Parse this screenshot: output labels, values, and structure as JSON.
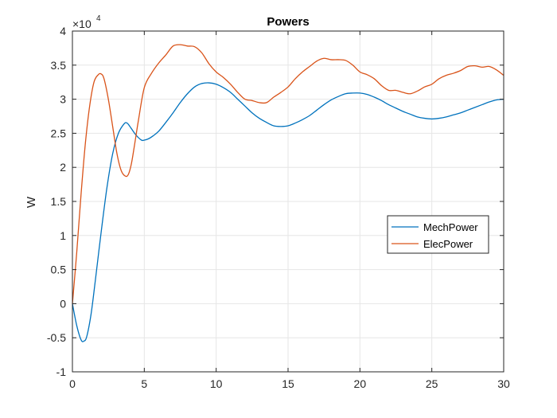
{
  "chart_data": {
    "type": "line",
    "title": "Powers",
    "xlabel": "",
    "ylabel": "W",
    "y_exponent_label": "×10",
    "y_exponent_power": "4",
    "xlim": [
      0,
      30
    ],
    "ylim": [
      -10000,
      40000
    ],
    "x_ticks": [
      0,
      5,
      10,
      15,
      20,
      25,
      30
    ],
    "x_tick_labels": [
      "0",
      "5",
      "10",
      "15",
      "20",
      "25",
      "30"
    ],
    "y_ticks": [
      -10000,
      -5000,
      0,
      5000,
      10000,
      15000,
      20000,
      25000,
      30000,
      35000,
      40000
    ],
    "y_tick_labels": [
      "-1",
      "-0.5",
      "0",
      "0.5",
      "1",
      "1.5",
      "2",
      "2.5",
      "3",
      "3.5",
      "4"
    ],
    "grid": true,
    "legend_position": "right-middle",
    "series": [
      {
        "name": "MechPower",
        "color": "#0072BD",
        "x": [
          0,
          0.3,
          0.6,
          0.8,
          1.0,
          1.3,
          1.6,
          2.0,
          2.4,
          2.8,
          3.2,
          3.6,
          3.8,
          4.0,
          4.4,
          4.8,
          5.0,
          5.3,
          5.6,
          6.0,
          6.5,
          7.0,
          7.5,
          8.0,
          8.5,
          9.0,
          9.5,
          10.0,
          10.5,
          11.0,
          11.5,
          12.0,
          12.5,
          13.0,
          13.5,
          14.0,
          14.5,
          15.0,
          15.5,
          16.0,
          16.5,
          17.0,
          17.5,
          18.0,
          18.5,
          19.0,
          19.5,
          20.0,
          20.5,
          21.0,
          21.5,
          22.0,
          22.5,
          23.0,
          23.5,
          24.0,
          24.5,
          25.0,
          25.5,
          26.0,
          26.5,
          27.0,
          27.5,
          28.0,
          28.5,
          29.0,
          29.5,
          30.0
        ],
        "y": [
          0,
          -3200,
          -5300,
          -5500,
          -4800,
          -1500,
          3500,
          10500,
          17000,
          22000,
          25000,
          26400,
          26500,
          26000,
          24800,
          24000,
          24000,
          24200,
          24600,
          25300,
          26600,
          28000,
          29500,
          30800,
          31800,
          32300,
          32400,
          32200,
          31700,
          31000,
          30000,
          29000,
          28000,
          27200,
          26600,
          26100,
          26000,
          26100,
          26500,
          27000,
          27600,
          28400,
          29200,
          29900,
          30400,
          30800,
          30900,
          30900,
          30700,
          30300,
          29800,
          29200,
          28700,
          28200,
          27800,
          27400,
          27200,
          27100,
          27200,
          27400,
          27700,
          28000,
          28400,
          28800,
          29200,
          29600,
          29900,
          30000
        ]
      },
      {
        "name": "ElecPower",
        "color": "#D95319",
        "x": [
          0,
          0.3,
          0.6,
          0.9,
          1.2,
          1.5,
          1.8,
          2.0,
          2.2,
          2.5,
          2.8,
          3.1,
          3.4,
          3.7,
          3.9,
          4.1,
          4.3,
          4.6,
          5.0,
          5.5,
          6.0,
          6.5,
          7.0,
          7.5,
          8.0,
          8.5,
          9.0,
          9.5,
          10.0,
          10.5,
          11.0,
          11.5,
          12.0,
          12.5,
          13.0,
          13.5,
          14.0,
          14.5,
          15.0,
          15.5,
          16.0,
          16.5,
          17.0,
          17.5,
          18.0,
          18.5,
          19.0,
          19.5,
          20.0,
          20.5,
          21.0,
          21.5,
          22.0,
          22.5,
          23.0,
          23.5,
          24.0,
          24.5,
          25.0,
          25.5,
          26.0,
          26.5,
          27.0,
          27.5,
          28.0,
          28.5,
          29.0,
          29.5,
          30.0
        ],
        "y": [
          0,
          7500,
          16000,
          23500,
          29000,
          32500,
          33600,
          33700,
          33000,
          30000,
          26000,
          22000,
          19500,
          18700,
          19000,
          20500,
          23000,
          27000,
          31700,
          33800,
          35300,
          36500,
          37800,
          38000,
          37800,
          37700,
          36800,
          35200,
          34000,
          33200,
          32200,
          31000,
          30000,
          29800,
          29500,
          29500,
          30300,
          31000,
          31800,
          33000,
          34000,
          34800,
          35600,
          36000,
          35800,
          35800,
          35700,
          35000,
          34000,
          33600,
          33000,
          32000,
          31300,
          31300,
          31000,
          30800,
          31200,
          31800,
          32200,
          33000,
          33500,
          33800,
          34200,
          34800,
          34900,
          34700,
          34800,
          34300,
          33500
        ]
      }
    ]
  }
}
